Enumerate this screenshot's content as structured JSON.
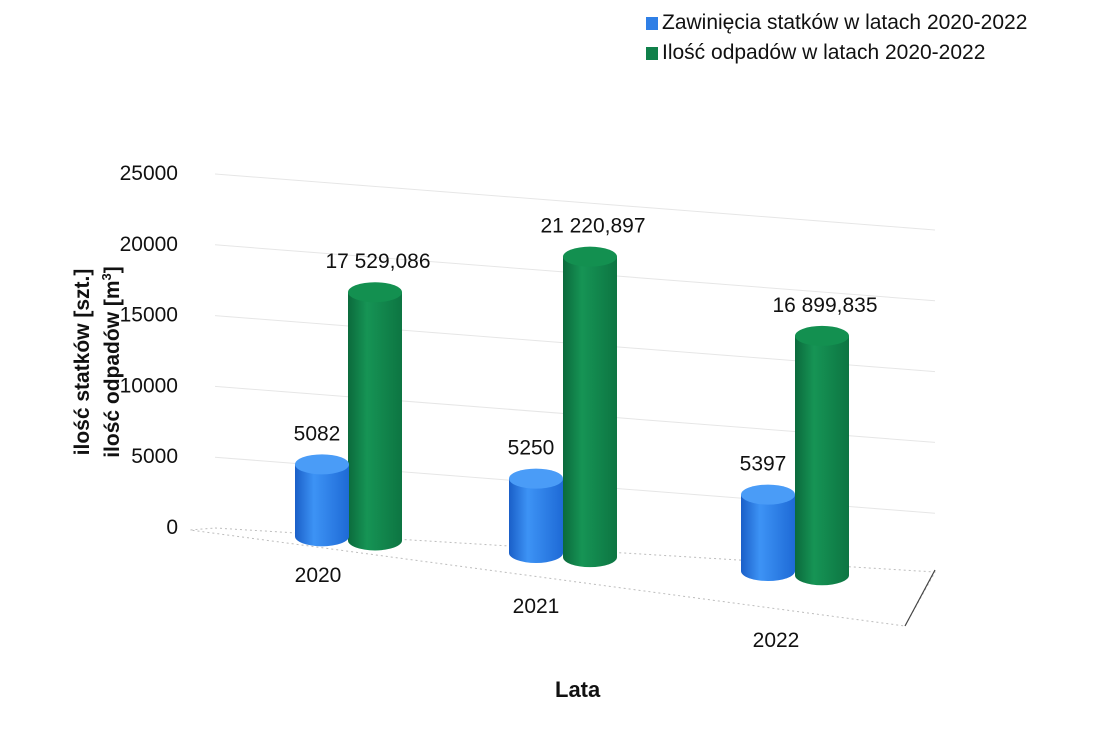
{
  "chart_data": {
    "type": "bar",
    "style": "3d-cylinder",
    "categories": [
      "2020",
      "2021",
      "2022"
    ],
    "series": [
      {
        "name": "Zawinięcia statków w latach 2020-2022",
        "values": [
          5082,
          5250,
          5397
        ],
        "value_labels": [
          "5082",
          "5250",
          "5397"
        ],
        "color": "#2f7fe6"
      },
      {
        "name": "Ilość odpadów w latach 2020-2022",
        "values": [
          17529.086,
          21220.897,
          16899.835
        ],
        "value_labels": [
          "17 529,086",
          "21 220,897",
          "16 899,835"
        ],
        "color": "#10804a"
      }
    ],
    "ylabel_line1": "ilość statków [szt.]",
    "ylabel_line2": "ilość odpadów [m",
    "ylabel_unit_sup": "3",
    "ylabel_line2_end": "]",
    "xlabel": "Lata",
    "ylim": [
      0,
      25000
    ],
    "yticks": [
      "0",
      "5000",
      "10000",
      "15000",
      "20000",
      "25000"
    ],
    "legend_position": "top-right",
    "grid": true
  }
}
